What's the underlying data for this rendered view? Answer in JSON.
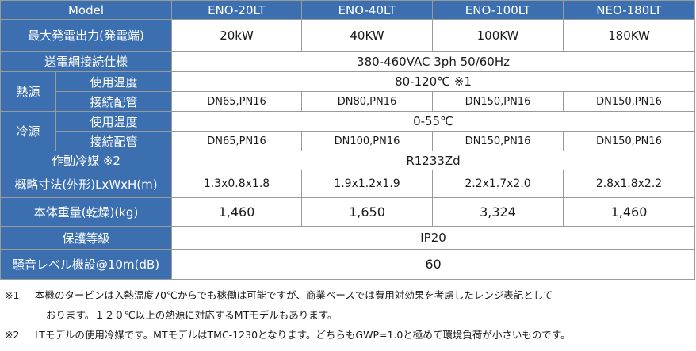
{
  "header": {
    "model_label": "Model",
    "models": [
      "ENO-20LT",
      "ENO-40LT",
      "ENO-100LT",
      "NEO-180LT"
    ]
  },
  "rows": {
    "max_output": {
      "label": "最大発電出力(発電端)",
      "values": [
        "20kW",
        "40KW",
        "100KW",
        "180KW"
      ]
    },
    "grid_spec": {
      "label": "送電網接続仕様",
      "value": "380-460VAC 3ph 50/60Hz"
    },
    "heat_source": {
      "label": "熱源",
      "temp_label": "使用温度",
      "temp_value": "80-120℃ ※1",
      "pipe_label": "接続配管",
      "pipe_values": [
        "DN65,PN16",
        "DN80,PN16",
        "DN150,PN16",
        "DN150,PN16"
      ]
    },
    "cold_source": {
      "label": "冷源",
      "temp_label": "使用温度",
      "temp_value": "0-55℃",
      "pipe_label": "接続配管",
      "pipe_values": [
        "DN65,PN16",
        "DN100,PN16",
        "DN150,PN16",
        "DN150,PN16"
      ]
    },
    "refrigerant": {
      "label": "作動冷媒 ※2",
      "value": "R1233Zd"
    },
    "dimensions": {
      "label": "概略寸法(外形)LxWxH(m)",
      "values": [
        "1.3x0.8x1.8",
        "1.9x1.2x1.9",
        "2.2x1.7x2.0",
        "2.8x1.8x2.2"
      ]
    },
    "weight": {
      "label": "本体重量(乾燥)(kg)",
      "values": [
        "1,460",
        "1,650",
        "3,324",
        "1,460"
      ]
    },
    "protection": {
      "label": "保護等級",
      "value": "IP20"
    },
    "noise": {
      "label": "騒音レベル機設@10m(dB)",
      "value": "60"
    }
  },
  "notes": {
    "note1_mark": "※1",
    "note1_line1": "本機のタービンは入熱温度70℃からでも稼働は可能ですが、商業ベースでは費用対効果を考慮したレンジ表記として",
    "note1_line2": "おります。１２０℃以上の熱源に対応するMTモデルもあります。",
    "note2_mark": "※2",
    "note2_line1": "LTモデルの使用冷媒です。MTモデルはTMC-1230となります。どちらもGWP=1.0と極めて環境負荷が小さいものです。"
  }
}
